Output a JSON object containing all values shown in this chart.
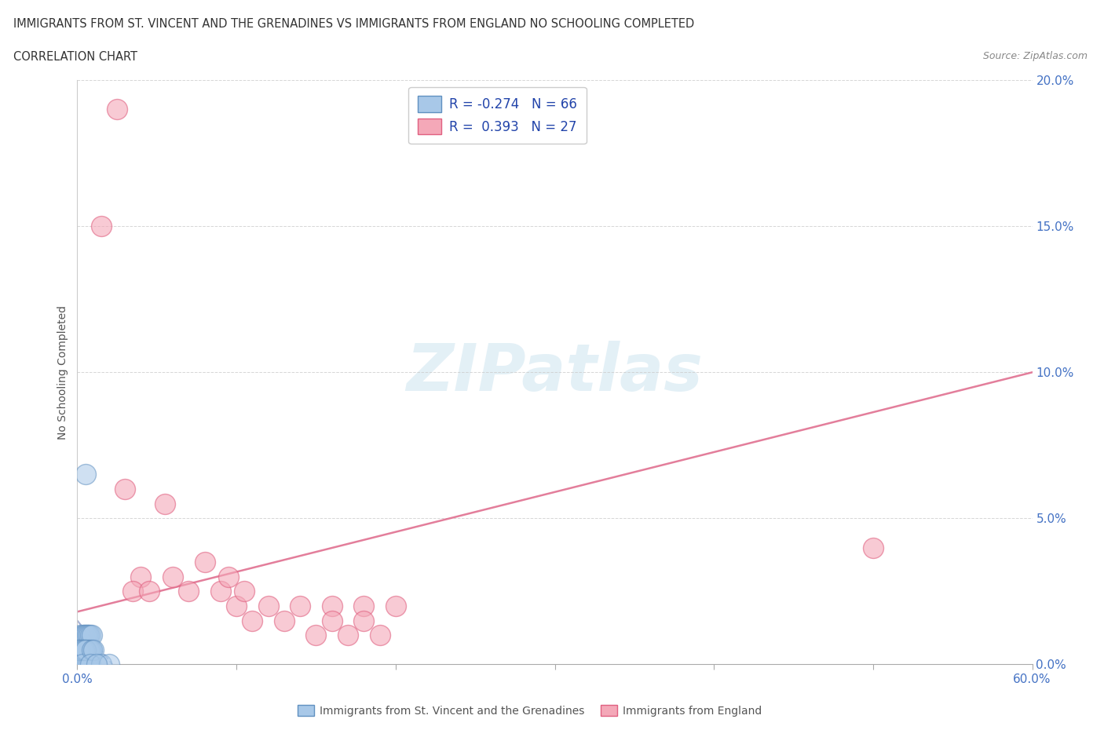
{
  "title_line1": "IMMIGRANTS FROM ST. VINCENT AND THE GRENADINES VS IMMIGRANTS FROM ENGLAND NO SCHOOLING COMPLETED",
  "title_line2": "CORRELATION CHART",
  "source_text": "Source: ZipAtlas.com",
  "ylabel_text": "No Schooling Completed",
  "xlim": [
    0.0,
    0.6
  ],
  "ylim": [
    0.0,
    0.2
  ],
  "xticks": [
    0.0,
    0.1,
    0.2,
    0.3,
    0.4,
    0.5,
    0.6
  ],
  "yticks": [
    0.0,
    0.05,
    0.1,
    0.15,
    0.2
  ],
  "blue_color": "#a8c8e8",
  "pink_color": "#f4a8b8",
  "blue_edge": "#6090c0",
  "pink_edge": "#e06080",
  "trend_pink_color": "#e07090",
  "trend_blue_color": "#8090c0",
  "blue_R": -0.274,
  "blue_N": 66,
  "pink_R": 0.393,
  "pink_N": 27,
  "legend_label_blue": "Immigrants from St. Vincent and the Grenadines",
  "legend_label_pink": "Immigrants from England",
  "blue_points_x": [
    0.005,
    0.008,
    0.003,
    0.006,
    0.004,
    0.007,
    0.009,
    0.002,
    0.001,
    0.003,
    0.005,
    0.004,
    0.006,
    0.007,
    0.002,
    0.003,
    0.004,
    0.005,
    0.006,
    0.007,
    0.008,
    0.009,
    0.004,
    0.003,
    0.005,
    0.006,
    0.002,
    0.003,
    0.004,
    0.005,
    0.006,
    0.007,
    0.001,
    0.002,
    0.003,
    0.001,
    0.002,
    0.003,
    0.004,
    0.005,
    0.006,
    0.007,
    0.008,
    0.002,
    0.003,
    0.004,
    0.005,
    0.003,
    0.002,
    0.001,
    0.004,
    0.005,
    0.006,
    0.007,
    0.002,
    0.001,
    0.003,
    0.004,
    0.005,
    0.003,
    0.009,
    0.01,
    0.008,
    0.015,
    0.02,
    0.012
  ],
  "blue_points_y": [
    0.065,
    0.005,
    0.005,
    0.005,
    0.005,
    0.005,
    0.005,
    0.005,
    0.005,
    0.005,
    0.01,
    0.01,
    0.01,
    0.01,
    0.01,
    0.01,
    0.01,
    0.01,
    0.01,
    0.01,
    0.01,
    0.01,
    0.0,
    0.0,
    0.0,
    0.0,
    0.0,
    0.0,
    0.0,
    0.0,
    0.0,
    0.0,
    0.0,
    0.0,
    0.0,
    0.005,
    0.005,
    0.005,
    0.005,
    0.005,
    0.005,
    0.005,
    0.005,
    0.0,
    0.0,
    0.0,
    0.0,
    0.0,
    0.0,
    0.0,
    0.0,
    0.0,
    0.0,
    0.0,
    0.005,
    0.005,
    0.005,
    0.005,
    0.005,
    0.0,
    0.005,
    0.005,
    0.0,
    0.0,
    0.0,
    0.0
  ],
  "pink_points_x": [
    0.025,
    0.015,
    0.03,
    0.055,
    0.08,
    0.06,
    0.04,
    0.07,
    0.09,
    0.1,
    0.12,
    0.14,
    0.16,
    0.18,
    0.2,
    0.16,
    0.18,
    0.13,
    0.11,
    0.17,
    0.15,
    0.095,
    0.105,
    0.035,
    0.045,
    0.5,
    0.19
  ],
  "pink_points_y": [
    0.19,
    0.15,
    0.06,
    0.055,
    0.035,
    0.03,
    0.03,
    0.025,
    0.025,
    0.02,
    0.02,
    0.02,
    0.02,
    0.02,
    0.02,
    0.015,
    0.015,
    0.015,
    0.015,
    0.01,
    0.01,
    0.03,
    0.025,
    0.025,
    0.025,
    0.04,
    0.01
  ],
  "pink_trend_x": [
    0.0,
    0.6
  ],
  "pink_trend_y": [
    0.018,
    0.1
  ],
  "blue_trend_x": [
    0.0,
    0.022
  ],
  "blue_trend_y": [
    0.015,
    0.0
  ],
  "grid_color": "#cccccc",
  "bg_color": "#ffffff",
  "title_color": "#333333",
  "tick_color": "#4472c4"
}
